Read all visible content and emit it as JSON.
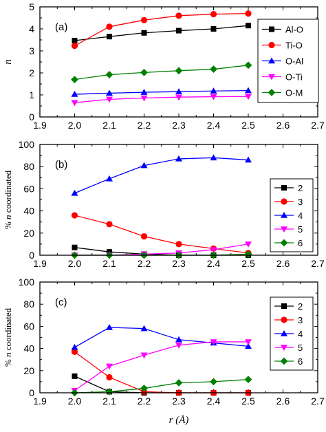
{
  "chart_data": [
    {
      "type": "line",
      "panel_label": "(a)",
      "ylabel": "n",
      "xlim": [
        1.9,
        2.7
      ],
      "ylim": [
        0,
        5
      ],
      "x_ticks": [
        "1.9",
        "2.0",
        "2.1",
        "2.2",
        "2.3",
        "2.4",
        "2.5",
        "2.6",
        "2.7"
      ],
      "y_ticks": [
        "0",
        "1",
        "2",
        "3",
        "4",
        "5"
      ],
      "x": [
        2.0,
        2.1,
        2.2,
        2.3,
        2.4,
        2.5
      ],
      "legend_position": "top-right",
      "series": [
        {
          "name": "Al-O",
          "color": "#000000",
          "marker": "square",
          "values": [
            3.47,
            3.65,
            3.82,
            3.92,
            4.0,
            4.15
          ]
        },
        {
          "name": "Ti-O",
          "color": "#ff0000",
          "marker": "circle",
          "values": [
            3.23,
            4.1,
            4.4,
            4.6,
            4.67,
            4.7
          ]
        },
        {
          "name": "O-Al",
          "color": "#0000ff",
          "marker": "triangle-up",
          "values": [
            1.03,
            1.08,
            1.12,
            1.15,
            1.18,
            1.2
          ]
        },
        {
          "name": "O-Ti",
          "color": "#ff00ff",
          "marker": "triangle-down",
          "values": [
            0.65,
            0.8,
            0.86,
            0.9,
            0.92,
            0.93
          ]
        },
        {
          "name": "O-M",
          "color": "#008000",
          "marker": "diamond",
          "values": [
            1.7,
            1.92,
            2.02,
            2.1,
            2.17,
            2.35
          ]
        }
      ]
    },
    {
      "type": "line",
      "panel_label": "(b)",
      "ylabel": "% n coordinated",
      "xlim": [
        1.9,
        2.7
      ],
      "ylim": [
        0,
        100
      ],
      "x_ticks": [
        "1.9",
        "2.0",
        "2.1",
        "2.2",
        "2.3",
        "2.4",
        "2.5",
        "2.6",
        "2.7"
      ],
      "y_ticks": [
        "0",
        "20",
        "40",
        "60",
        "80",
        "100"
      ],
      "x": [
        2.0,
        2.1,
        2.2,
        2.3,
        2.4,
        2.5
      ],
      "legend_position": "right",
      "series": [
        {
          "name": "2",
          "color": "#000000",
          "marker": "square",
          "values": [
            7,
            3,
            1,
            0,
            0,
            0
          ]
        },
        {
          "name": "3",
          "color": "#ff0000",
          "marker": "circle",
          "values": [
            36,
            28,
            17,
            10,
            6,
            2
          ]
        },
        {
          "name": "4",
          "color": "#0000ff",
          "marker": "triangle-up",
          "values": [
            56,
            69,
            81,
            87,
            88,
            86
          ]
        },
        {
          "name": "5",
          "color": "#ff00ff",
          "marker": "triangle-down",
          "values": [
            0,
            0,
            1,
            2,
            5,
            10
          ]
        },
        {
          "name": "6",
          "color": "#008000",
          "marker": "diamond",
          "values": [
            0,
            0,
            0,
            0,
            0,
            1
          ]
        }
      ]
    },
    {
      "type": "line",
      "panel_label": "(c)",
      "ylabel": "% n coordinated",
      "xlabel": "r (Å)",
      "xlim": [
        1.9,
        2.7
      ],
      "ylim": [
        0,
        100
      ],
      "x_ticks": [
        "1.9",
        "2.0",
        "2.1",
        "2.2",
        "2.3",
        "2.4",
        "2.5",
        "2.6",
        "2.7"
      ],
      "y_ticks": [
        "0",
        "20",
        "40",
        "60",
        "80",
        "100"
      ],
      "x": [
        2.0,
        2.1,
        2.2,
        2.3,
        2.4,
        2.5
      ],
      "legend_position": "right",
      "series": [
        {
          "name": "2",
          "color": "#000000",
          "marker": "square",
          "values": [
            15,
            1,
            0,
            0,
            0,
            0
          ]
        },
        {
          "name": "3",
          "color": "#ff0000",
          "marker": "circle",
          "values": [
            37,
            14,
            1,
            0,
            0,
            0
          ]
        },
        {
          "name": "4",
          "color": "#0000ff",
          "marker": "triangle-up",
          "values": [
            41,
            59,
            58,
            48,
            45,
            42
          ]
        },
        {
          "name": "5",
          "color": "#ff00ff",
          "marker": "triangle-down",
          "values": [
            2,
            24,
            34,
            43,
            46,
            46
          ]
        },
        {
          "name": "6",
          "color": "#008000",
          "marker": "diamond",
          "values": [
            0,
            1,
            4,
            9,
            10,
            12
          ]
        }
      ]
    }
  ]
}
